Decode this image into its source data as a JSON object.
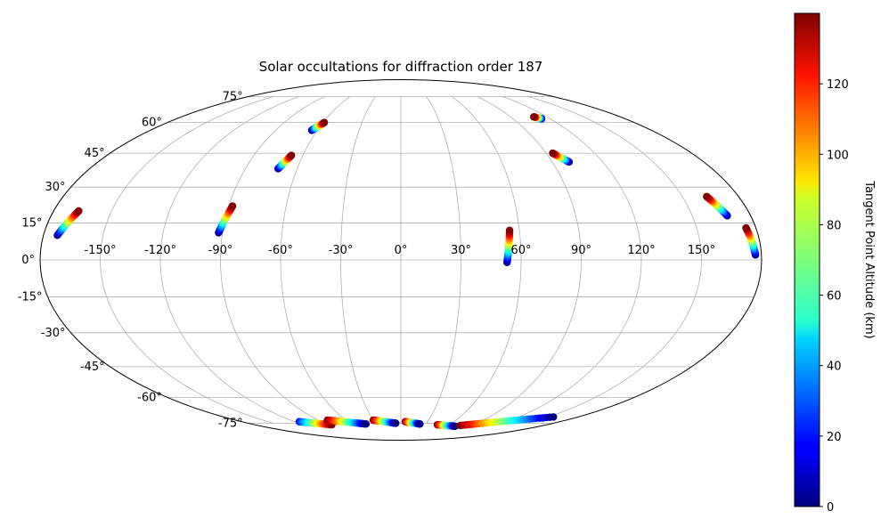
{
  "chart_data": {
    "type": "scatter",
    "projection": "mollweide",
    "title": "Solar occultations for diffraction order 187",
    "x_tick_labels": [
      "-150°",
      "-120°",
      "-90°",
      "-60°",
      "-30°",
      "0°",
      "30°",
      "60°",
      "90°",
      "120°",
      "150°"
    ],
    "x_tick_values": [
      -150,
      -120,
      -90,
      -60,
      -30,
      0,
      30,
      60,
      90,
      120,
      150
    ],
    "y_tick_labels": [
      "75°",
      "60°",
      "45°",
      "30°",
      "15°",
      "0°",
      "-15°",
      "-30°",
      "-45°",
      "-60°",
      "-75°"
    ],
    "y_tick_values": [
      75,
      60,
      45,
      30,
      15,
      0,
      -15,
      -30,
      -45,
      -60,
      -75
    ],
    "grid": true,
    "colormap": "jet",
    "colorbar": {
      "label": "Tangent Point Altitude (km)",
      "range": [
        0,
        140
      ],
      "tick_labels": [
        "0",
        "20",
        "40",
        "60",
        "80",
        "100",
        "120"
      ],
      "tick_values": [
        0,
        20,
        40,
        60,
        80,
        100,
        120
      ]
    },
    "occultations": [
      {
        "lon": [
          -173,
          -167
        ],
        "lat": [
          10,
          20
        ],
        "alt": [
          0,
          140
        ]
      },
      {
        "lon": [
          -92,
          -88
        ],
        "lat": [
          11,
          22
        ],
        "alt": [
          0,
          140
        ]
      },
      {
        "lon": [
          -71,
          -67
        ],
        "lat": [
          38,
          44
        ],
        "alt": [
          0,
          140
        ]
      },
      {
        "lon": [
          -64,
          -59
        ],
        "lat": [
          56,
          60
        ],
        "alt": [
          0,
          140
        ]
      },
      {
        "lon": [
          53,
          55
        ],
        "lat": [
          -1,
          12
        ],
        "alt": [
          0,
          140
        ]
      },
      {
        "lon": [
          100,
          94
        ],
        "lat": [
          41,
          45
        ],
        "alt": [
          0,
          140
        ]
      },
      {
        "lon": [
          113,
          109
        ],
        "lat": [
          62,
          63
        ],
        "alt": [
          0,
          140
        ]
      },
      {
        "lon": [
          168,
          163
        ],
        "lat": [
          18,
          26
        ],
        "alt": [
          0,
          140
        ]
      },
      {
        "lon": [
          177,
          175
        ],
        "lat": [
          2,
          13
        ],
        "alt": [
          0,
          140
        ]
      },
      {
        "lon": [
          -115,
          -85
        ],
        "lat": [
          -74,
          -76
        ],
        "alt": [
          20,
          140
        ]
      },
      {
        "lon": [
          -80,
          -42
        ],
        "lat": [
          -73,
          -75.5
        ],
        "alt": [
          140,
          0
        ]
      },
      {
        "lon": [
          -30,
          -6
        ],
        "lat": [
          -73,
          -75
        ],
        "alt": [
          140,
          0
        ]
      },
      {
        "lon": [
          5,
          23
        ],
        "lat": [
          -74,
          -75.5
        ],
        "alt": [
          140,
          0
        ]
      },
      {
        "lon": [
          45,
          70
        ],
        "lat": [
          -76,
          -77
        ],
        "alt": [
          140,
          0
        ]
      },
      {
        "lon": [
          75,
          155
        ],
        "lat": [
          -76.5,
          -71
        ],
        "alt": [
          140,
          0
        ]
      }
    ]
  }
}
